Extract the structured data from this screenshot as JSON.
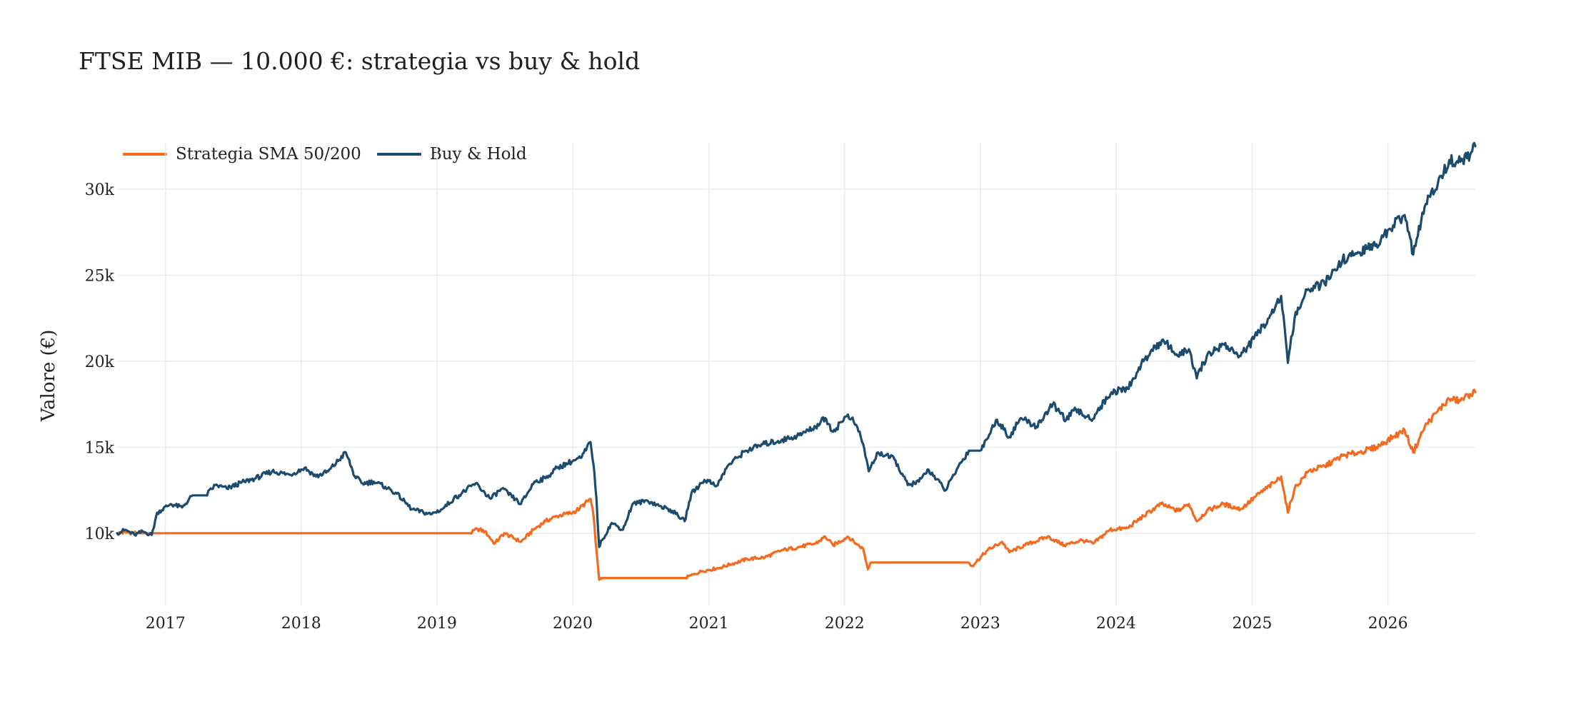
{
  "chart_data": {
    "type": "line",
    "title": "FTSE MIB — 10.000 €: strategia vs buy & hold",
    "xlabel": "",
    "ylabel": "Valore (€)",
    "ylim": [
      5800,
      32700
    ],
    "xlim": [
      "2016-08-24",
      "2026-08-24"
    ],
    "grid": true,
    "legend_position": "top-left",
    "y_ticks": [
      {
        "value": 10000,
        "label": "10k"
      },
      {
        "value": 15000,
        "label": "15k"
      },
      {
        "value": 20000,
        "label": "20k"
      },
      {
        "value": 25000,
        "label": "25k"
      },
      {
        "value": 30000,
        "label": "30k"
      }
    ],
    "x_ticks": [
      {
        "value": "2017-01-01",
        "label": "2017"
      },
      {
        "value": "2018-01-01",
        "label": "2018"
      },
      {
        "value": "2019-01-01",
        "label": "2019"
      },
      {
        "value": "2020-01-01",
        "label": "2020"
      },
      {
        "value": "2021-01-01",
        "label": "2021"
      },
      {
        "value": "2022-01-01",
        "label": "2022"
      },
      {
        "value": "2023-01-01",
        "label": "2023"
      },
      {
        "value": "2024-01-01",
        "label": "2024"
      },
      {
        "value": "2025-01-01",
        "label": "2025"
      },
      {
        "value": "2026-01-01",
        "label": "2026"
      }
    ],
    "series": [
      {
        "name": "Strategia SMA 50/200",
        "color": "#f46a1f",
        "points": [
          [
            "2016-08-24",
            10000
          ],
          [
            "2016-09-20",
            10050
          ],
          [
            "2016-10-20",
            10000
          ],
          [
            "2016-12-01",
            10000
          ],
          [
            "2017-06-01",
            10000
          ],
          [
            "2018-06-01",
            10000
          ],
          [
            "2019-04-01",
            10000
          ],
          [
            "2019-04-20",
            10250
          ],
          [
            "2019-05-10",
            10100
          ],
          [
            "2019-06-05",
            9400
          ],
          [
            "2019-07-01",
            10000
          ],
          [
            "2019-08-15",
            9500
          ],
          [
            "2019-09-20",
            10250
          ],
          [
            "2019-10-20",
            10700
          ],
          [
            "2019-11-20",
            11000
          ],
          [
            "2020-01-01",
            11200
          ],
          [
            "2020-01-20",
            11450
          ],
          [
            "2020-02-18",
            12000
          ],
          [
            "2020-02-26",
            11000
          ],
          [
            "2020-03-05",
            9000
          ],
          [
            "2020-03-12",
            7300
          ],
          [
            "2020-03-20",
            7400
          ],
          [
            "2020-06-01",
            7400
          ],
          [
            "2020-10-30",
            7400
          ],
          [
            "2020-11-20",
            7600
          ],
          [
            "2020-12-15",
            7800
          ],
          [
            "2021-02-01",
            8000
          ],
          [
            "2021-03-01",
            8200
          ],
          [
            "2021-04-15",
            8500
          ],
          [
            "2021-06-01",
            8600
          ],
          [
            "2021-07-15",
            9000
          ],
          [
            "2021-09-01",
            9200
          ],
          [
            "2021-10-15",
            9400
          ],
          [
            "2021-11-10",
            9800
          ],
          [
            "2021-12-01",
            9300
          ],
          [
            "2022-01-10",
            9800
          ],
          [
            "2022-02-01",
            9400
          ],
          [
            "2022-02-20",
            9100
          ],
          [
            "2022-03-05",
            7900
          ],
          [
            "2022-03-12",
            8300
          ],
          [
            "2022-06-01",
            8300
          ],
          [
            "2022-11-30",
            8300
          ],
          [
            "2022-12-10",
            8100
          ],
          [
            "2023-01-20",
            9000
          ],
          [
            "2023-03-01",
            9500
          ],
          [
            "2023-03-20",
            8900
          ],
          [
            "2023-05-01",
            9300
          ],
          [
            "2023-07-01",
            9800
          ],
          [
            "2023-08-15",
            9300
          ],
          [
            "2023-10-01",
            9600
          ],
          [
            "2023-11-01",
            9400
          ],
          [
            "2023-12-15",
            10200
          ],
          [
            "2024-02-01",
            10300
          ],
          [
            "2024-03-15",
            11000
          ],
          [
            "2024-05-01",
            11700
          ],
          [
            "2024-06-15",
            11300
          ],
          [
            "2024-07-15",
            11700
          ],
          [
            "2024-08-05",
            10700
          ],
          [
            "2024-09-01",
            11300
          ],
          [
            "2024-10-15",
            11700
          ],
          [
            "2024-12-01",
            11400
          ],
          [
            "2025-01-20",
            12300
          ],
          [
            "2025-03-05",
            13000
          ],
          [
            "2025-03-20",
            13300
          ],
          [
            "2025-04-07",
            11200
          ],
          [
            "2025-04-25",
            12600
          ],
          [
            "2025-06-01",
            13600
          ],
          [
            "2025-07-15",
            13900
          ],
          [
            "2025-09-01",
            14500
          ],
          [
            "2025-10-15",
            14700
          ],
          [
            "2025-12-01",
            15000
          ],
          [
            "2026-01-15",
            15600
          ],
          [
            "2026-02-15",
            16000
          ],
          [
            "2026-03-10",
            14700
          ],
          [
            "2026-04-10",
            16200
          ],
          [
            "2026-05-15",
            17100
          ],
          [
            "2026-06-15",
            17800
          ],
          [
            "2026-07-15",
            17700
          ],
          [
            "2026-08-10",
            18100
          ],
          [
            "2026-08-24",
            18200
          ]
        ]
      },
      {
        "name": "Buy & Hold",
        "color": "#1b4b6e",
        "points": [
          [
            "2016-08-24",
            10000
          ],
          [
            "2016-09-15",
            10200
          ],
          [
            "2016-10-10",
            9900
          ],
          [
            "2016-11-01",
            10100
          ],
          [
            "2016-11-25",
            9900
          ],
          [
            "2016-12-10",
            11200
          ],
          [
            "2017-01-15",
            11700
          ],
          [
            "2017-02-15",
            11500
          ],
          [
            "2017-03-15",
            12200
          ],
          [
            "2017-04-20",
            12200
          ],
          [
            "2017-05-15",
            12800
          ],
          [
            "2017-06-15",
            12600
          ],
          [
            "2017-08-01",
            13000
          ],
          [
            "2017-09-01",
            13200
          ],
          [
            "2017-10-15",
            13600
          ],
          [
            "2017-12-01",
            13400
          ],
          [
            "2018-01-10",
            13800
          ],
          [
            "2018-02-10",
            13300
          ],
          [
            "2018-03-15",
            13600
          ],
          [
            "2018-05-01",
            14700
          ],
          [
            "2018-05-25",
            13300
          ],
          [
            "2018-06-15",
            12900
          ],
          [
            "2018-07-15",
            13000
          ],
          [
            "2018-08-15",
            12700
          ],
          [
            "2018-09-15",
            12300
          ],
          [
            "2018-10-25",
            11400
          ],
          [
            "2018-12-15",
            11100
          ],
          [
            "2019-01-15",
            11400
          ],
          [
            "2019-02-15",
            12000
          ],
          [
            "2019-04-15",
            12900
          ],
          [
            "2019-05-25",
            12000
          ],
          [
            "2019-06-25",
            12600
          ],
          [
            "2019-08-15",
            11700
          ],
          [
            "2019-09-20",
            13000
          ],
          [
            "2019-10-20",
            13200
          ],
          [
            "2019-11-20",
            13800
          ],
          [
            "2020-01-01",
            14200
          ],
          [
            "2020-01-25",
            14400
          ],
          [
            "2020-02-18",
            15300
          ],
          [
            "2020-02-26",
            14000
          ],
          [
            "2020-03-05",
            12000
          ],
          [
            "2020-03-12",
            9200
          ],
          [
            "2020-03-20",
            9600
          ],
          [
            "2020-04-15",
            10600
          ],
          [
            "2020-05-15",
            10200
          ],
          [
            "2020-06-10",
            11700
          ],
          [
            "2020-07-20",
            11900
          ],
          [
            "2020-08-20",
            11600
          ],
          [
            "2020-09-25",
            11300
          ],
          [
            "2020-10-28",
            10700
          ],
          [
            "2020-11-15",
            12300
          ],
          [
            "2020-12-20",
            13100
          ],
          [
            "2021-01-25",
            12800
          ],
          [
            "2021-02-20",
            13900
          ],
          [
            "2021-04-10",
            14800
          ],
          [
            "2021-06-01",
            15200
          ],
          [
            "2021-07-15",
            15400
          ],
          [
            "2021-09-01",
            15700
          ],
          [
            "2021-10-15",
            16200
          ],
          [
            "2021-11-10",
            16700
          ],
          [
            "2021-12-01",
            15900
          ],
          [
            "2022-01-10",
            16900
          ],
          [
            "2022-02-01",
            16300
          ],
          [
            "2022-02-20",
            15200
          ],
          [
            "2022-03-07",
            13600
          ],
          [
            "2022-04-01",
            14700
          ],
          [
            "2022-05-15",
            14300
          ],
          [
            "2022-06-20",
            12800
          ],
          [
            "2022-07-20",
            13000
          ],
          [
            "2022-08-15",
            13700
          ],
          [
            "2022-09-30",
            12500
          ],
          [
            "2022-11-01",
            13800
          ],
          [
            "2022-12-01",
            14800
          ],
          [
            "2023-01-01",
            14800
          ],
          [
            "2023-02-15",
            16600
          ],
          [
            "2023-03-20",
            15600
          ],
          [
            "2023-04-20",
            16700
          ],
          [
            "2023-06-01",
            16200
          ],
          [
            "2023-07-15",
            17500
          ],
          [
            "2023-08-20",
            16600
          ],
          [
            "2023-09-15",
            17200
          ],
          [
            "2023-10-25",
            16600
          ],
          [
            "2023-12-20",
            18200
          ],
          [
            "2024-02-01",
            18400
          ],
          [
            "2024-03-15",
            20000
          ],
          [
            "2024-04-15",
            20900
          ],
          [
            "2024-05-15",
            21100
          ],
          [
            "2024-06-15",
            20300
          ],
          [
            "2024-07-15",
            20700
          ],
          [
            "2024-08-05",
            19000
          ],
          [
            "2024-09-01",
            20300
          ],
          [
            "2024-10-15",
            21000
          ],
          [
            "2024-12-01",
            20300
          ],
          [
            "2025-01-20",
            21700
          ],
          [
            "2025-03-05",
            23200
          ],
          [
            "2025-03-20",
            23800
          ],
          [
            "2025-04-07",
            19900
          ],
          [
            "2025-04-25",
            22500
          ],
          [
            "2025-06-01",
            24200
          ],
          [
            "2025-07-15",
            24500
          ],
          [
            "2025-09-01",
            25900
          ],
          [
            "2025-10-15",
            26300
          ],
          [
            "2025-12-01",
            26800
          ],
          [
            "2026-01-15",
            27900
          ],
          [
            "2026-02-15",
            28500
          ],
          [
            "2026-03-10",
            26200
          ],
          [
            "2026-04-10",
            29000
          ],
          [
            "2026-05-15",
            30300
          ],
          [
            "2026-06-15",
            31700
          ],
          [
            "2026-07-15",
            31600
          ],
          [
            "2026-08-10",
            32000
          ],
          [
            "2026-08-24",
            32500
          ]
        ]
      }
    ]
  }
}
